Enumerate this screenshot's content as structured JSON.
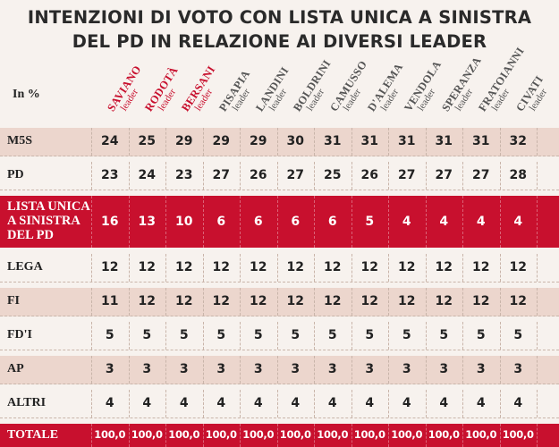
{
  "title": {
    "line1": "INTENZIONI DI VOTO CON LISTA UNICA A SINISTRA",
    "line2": "DEL PD IN RELAZIONE AI DIVERSI LEADER"
  },
  "unit_label": "In %",
  "leader_sublabel": "leader",
  "colors": {
    "background": "#f7f2ee",
    "row_alt": "#ecd6cd",
    "highlight": "#c8102e",
    "total": "#c8102e",
    "leader_highlight": "#c8102e",
    "leader_normal": "#555555"
  },
  "chart_data": {
    "type": "table",
    "title": "INTENZIONI DI VOTO CON LISTA UNICA A SINISTRA DEL PD IN RELAZIONE AI DIVERSI LEADER",
    "unit": "In %",
    "columns": [
      {
        "name": "SAVIANO",
        "highlight": true
      },
      {
        "name": "RODOTÀ",
        "highlight": true
      },
      {
        "name": "BERSANI",
        "highlight": true
      },
      {
        "name": "PISAPIA",
        "highlight": false
      },
      {
        "name": "LANDINI",
        "highlight": false
      },
      {
        "name": "BOLDRINI",
        "highlight": false
      },
      {
        "name": "CAMUSSO",
        "highlight": false
      },
      {
        "name": "D'ALEMA",
        "highlight": false
      },
      {
        "name": "VENDOLA",
        "highlight": false
      },
      {
        "name": "SPERANZA",
        "highlight": false
      },
      {
        "name": "FRATOIANNI",
        "highlight": false
      },
      {
        "name": "CIVATI",
        "highlight": false
      }
    ],
    "rows": [
      {
        "label": "M5S",
        "style": "alt",
        "values": [
          "24",
          "25",
          "29",
          "29",
          "29",
          "30",
          "31",
          "31",
          "31",
          "31",
          "31",
          "32"
        ]
      },
      {
        "label": "PD",
        "style": "plain",
        "values": [
          "23",
          "24",
          "23",
          "27",
          "26",
          "27",
          "25",
          "26",
          "27",
          "27",
          "27",
          "28"
        ]
      },
      {
        "label": "LISTA UNICA A SINISTRA DEL PD",
        "label_lines": [
          "LISTA UNICA",
          "A SINISTRA",
          "DEL PD"
        ],
        "style": "highlight",
        "values": [
          "16",
          "13",
          "10",
          "6",
          "6",
          "6",
          "6",
          "5",
          "4",
          "4",
          "4",
          "4"
        ]
      },
      {
        "label": "LEGA",
        "style": "plain",
        "values": [
          "12",
          "12",
          "12",
          "12",
          "12",
          "12",
          "12",
          "12",
          "12",
          "12",
          "12",
          "12"
        ]
      },
      {
        "label": "FI",
        "style": "alt",
        "values": [
          "11",
          "12",
          "12",
          "12",
          "12",
          "12",
          "12",
          "12",
          "12",
          "12",
          "12",
          "12"
        ]
      },
      {
        "label": "FD'I",
        "style": "plain",
        "values": [
          "5",
          "5",
          "5",
          "5",
          "5",
          "5",
          "5",
          "5",
          "5",
          "5",
          "5",
          "5"
        ]
      },
      {
        "label": "AP",
        "style": "alt",
        "values": [
          "3",
          "3",
          "3",
          "3",
          "3",
          "3",
          "3",
          "3",
          "3",
          "3",
          "3",
          "3"
        ]
      },
      {
        "label": "ALTRI",
        "style": "plain",
        "values": [
          "4",
          "4",
          "4",
          "4",
          "4",
          "4",
          "4",
          "4",
          "4",
          "4",
          "4",
          "4"
        ]
      },
      {
        "label": "TOTALE",
        "style": "total",
        "values": [
          "100,0",
          "100,0",
          "100,0",
          "100,0",
          "100,0",
          "100,0",
          "100,0",
          "100,0",
          "100,0",
          "100,0",
          "100,0",
          "100,0"
        ]
      }
    ]
  }
}
